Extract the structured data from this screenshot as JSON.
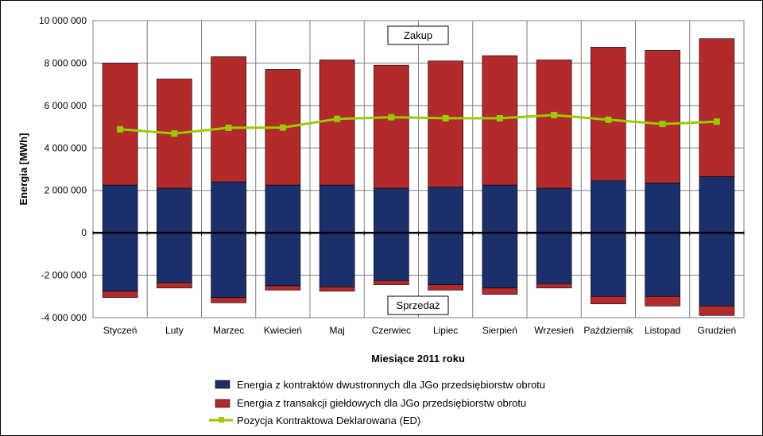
{
  "chart_data": {
    "type": "bar",
    "subtype": "stacked-bar-with-line",
    "title": "",
    "xlabel": "Miesiące 2011  roku",
    "ylabel": "Energia  [MWh]",
    "ylim": [
      -4000000,
      10000000
    ],
    "yticks": [
      {
        "value": 10000000,
        "label": "10 000 000"
      },
      {
        "value": 8000000,
        "label": "8 000 000"
      },
      {
        "value": 6000000,
        "label": "6 000 000"
      },
      {
        "value": 4000000,
        "label": "4 000 000"
      },
      {
        "value": 2000000,
        "label": "2 000 000"
      },
      {
        "value": 0,
        "label": "0"
      },
      {
        "value": -2000000,
        "label": "-2 000 000"
      },
      {
        "value": -4000000,
        "label": "-4 000 000"
      }
    ],
    "categories": [
      "Styczeń",
      "Luty",
      "Marzec",
      "Kwiecień",
      "Maj",
      "Czerwiec",
      "Lipiec",
      "Sierpień",
      "Wrzesień",
      "Październik",
      "Listopad",
      "Grudzień"
    ],
    "series": [
      {
        "name": "Energia z kontraktów dwustronnych dla JGo przedsiębiorstw obrotu",
        "color": "#1B2F6B",
        "buy": [
          2250000,
          2100000,
          2400000,
          2250000,
          2250000,
          2100000,
          2150000,
          2250000,
          2100000,
          2450000,
          2350000,
          2650000
        ],
        "sell": [
          -2750000,
          -2350000,
          -3050000,
          -2500000,
          -2550000,
          -2250000,
          -2450000,
          -2600000,
          -2400000,
          -3000000,
          -3000000,
          -3450000
        ]
      },
      {
        "name": "Energia z transakcji giełdowych dla JGo przedsiębiorstw obrotu",
        "color": "#B22A2A",
        "buy": [
          5750000,
          5150000,
          5900000,
          5450000,
          5900000,
          5800000,
          5950000,
          6100000,
          6050000,
          6300000,
          6250000,
          6500000
        ],
        "sell": [
          -300000,
          -250000,
          -250000,
          -200000,
          -200000,
          -200000,
          -250000,
          -300000,
          -200000,
          -350000,
          -450000,
          -450000
        ]
      },
      {
        "name": "Pozycja Kontraktowa Deklarowana (ED)",
        "color": "#99CC00",
        "type": "line",
        "values": [
          4880000,
          4680000,
          4950000,
          4960000,
          5370000,
          5450000,
          5400000,
          5400000,
          5550000,
          5330000,
          5130000,
          5240000
        ]
      }
    ],
    "annotations": {
      "buy_box": "Zakup",
      "sell_box": "Sprzedaż"
    },
    "grid": true,
    "legend_position": "bottom"
  }
}
